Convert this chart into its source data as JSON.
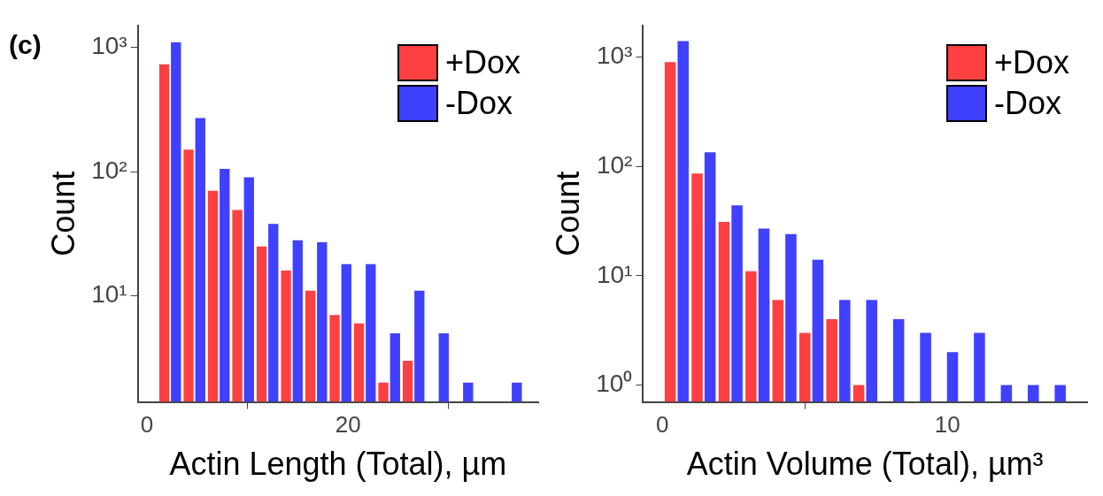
{
  "chart_data": [
    {
      "type": "histogram",
      "annotations": [
        "(c)"
      ],
      "xlabel": "Actin Length (Total), µm",
      "ylabel": "Count",
      "log": "y",
      "legend": "top right",
      "grid": false,
      "bins": [
        1.1,
        3.52,
        5.94,
        8.36,
        10.78,
        13.2,
        15.62,
        18.04,
        20.46,
        22.88,
        25.3,
        27.72,
        30.14,
        32.56,
        34.98,
        37.4
      ],
      "series": [
        {
          "name": "+Dox",
          "color": "#ff4040",
          "values": [
            730,
            150,
            70,
            49,
            25,
            16,
            11,
            7,
            6,
            2,
            3,
            null,
            null,
            null,
            null
          ]
        },
        {
          "name": "-Dox",
          "color": "#4040ff",
          "values": [
            1100,
            270,
            105,
            90,
            38,
            28,
            27,
            18,
            18,
            5,
            11,
            5,
            2,
            null,
            2
          ]
        }
      ],
      "xlim": [
        -0.9,
        38.9
      ],
      "xticks": [
        0,
        20
      ],
      "ylim": [
        1.4,
        1500
      ],
      "yticks": [
        {
          "value": 10,
          "label": "10¹"
        },
        {
          "value": 100,
          "label": "10²"
        },
        {
          "value": 1000,
          "label": "10³"
        }
      ]
    },
    {
      "type": "histogram",
      "xlabel": "Actin Volume (Total), µm³",
      "ylabel": "Count",
      "log": "y",
      "legend": "top right",
      "grid": false,
      "bins": [
        0.03,
        0.975,
        1.92,
        2.865,
        3.81,
        4.755,
        5.7,
        6.645,
        7.59,
        8.535,
        9.48,
        10.425,
        11.37,
        12.315,
        13.26,
        14.205
      ],
      "series": [
        {
          "name": "+Dox",
          "color": "#ff4040",
          "values": [
            900,
            86,
            31,
            11,
            6,
            3,
            4,
            1,
            null,
            null,
            null,
            null,
            null,
            null,
            null
          ]
        },
        {
          "name": "-Dox",
          "color": "#4040ff",
          "values": [
            1400,
            135,
            44,
            27,
            24,
            14,
            6,
            6,
            4,
            3,
            2,
            3,
            1,
            1,
            1
          ]
        }
      ],
      "xlim": [
        -0.68,
        14.9
      ],
      "xticks": [
        0,
        10
      ],
      "ylim": [
        0.72,
        1950
      ],
      "yticks": [
        {
          "value": 1,
          "label": "10⁰"
        },
        {
          "value": 10,
          "label": "10¹"
        },
        {
          "value": 100,
          "label": "10²"
        },
        {
          "value": 1000,
          "label": "10³"
        }
      ]
    }
  ]
}
